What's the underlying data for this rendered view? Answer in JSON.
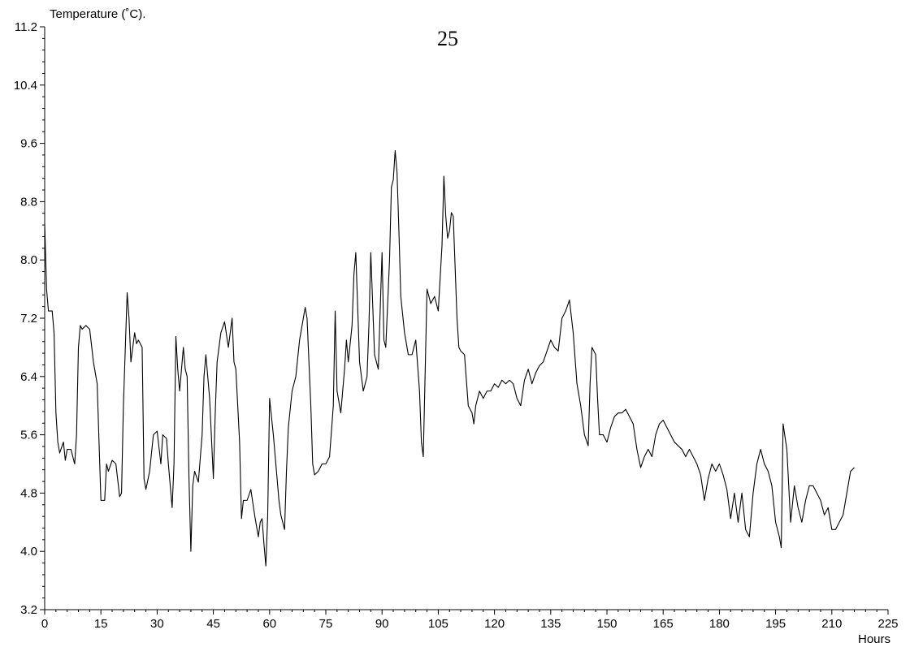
{
  "chart_data": {
    "type": "line",
    "title": "25",
    "ylabel": "Temperature (˚C).",
    "xlabel": "Hours",
    "xlim": [
      0,
      225
    ],
    "ylim": [
      3.2,
      11.2
    ],
    "xticks": [
      0,
      15,
      30,
      45,
      60,
      75,
      90,
      105,
      120,
      135,
      150,
      165,
      180,
      195,
      210,
      225
    ],
    "yticks": [
      "3.2",
      "4.0",
      "4.8",
      "5.6",
      "6.4",
      "7.2",
      "8.0",
      "8.8",
      "9.6",
      "10.4",
      "11.2"
    ],
    "grid": false,
    "series": [
      {
        "color": "#000000",
        "points": [
          [
            0,
            8.5
          ],
          [
            0.5,
            7.6
          ],
          [
            1,
            7.3
          ],
          [
            2,
            7.3
          ],
          [
            2.5,
            7.0
          ],
          [
            3,
            5.9
          ],
          [
            3.5,
            5.5
          ],
          [
            4,
            5.35
          ],
          [
            5,
            5.5
          ],
          [
            5.5,
            5.25
          ],
          [
            6,
            5.4
          ],
          [
            7,
            5.4
          ],
          [
            8,
            5.2
          ],
          [
            8.5,
            5.6
          ],
          [
            9,
            6.8
          ],
          [
            9.5,
            7.1
          ],
          [
            10,
            7.05
          ],
          [
            11,
            7.1
          ],
          [
            12,
            7.05
          ],
          [
            13,
            6.6
          ],
          [
            14,
            6.3
          ],
          [
            14.5,
            5.5
          ],
          [
            15,
            4.7
          ],
          [
            16,
            4.7
          ],
          [
            16.5,
            5.2
          ],
          [
            17,
            5.1
          ],
          [
            18,
            5.25
          ],
          [
            19,
            5.2
          ],
          [
            20,
            4.75
          ],
          [
            20.5,
            4.8
          ],
          [
            21,
            6.0
          ],
          [
            22,
            7.55
          ],
          [
            22.5,
            7.2
          ],
          [
            23,
            6.6
          ],
          [
            24,
            7.0
          ],
          [
            24.5,
            6.85
          ],
          [
            25,
            6.9
          ],
          [
            26,
            6.8
          ],
          [
            26.5,
            5.0
          ],
          [
            27,
            4.85
          ],
          [
            28,
            5.1
          ],
          [
            29,
            5.6
          ],
          [
            30,
            5.65
          ],
          [
            31,
            5.2
          ],
          [
            31.5,
            5.6
          ],
          [
            32.5,
            5.55
          ],
          [
            33,
            5.2
          ],
          [
            34,
            4.6
          ],
          [
            34.5,
            5.2
          ],
          [
            35,
            6.95
          ],
          [
            35.5,
            6.5
          ],
          [
            36,
            6.2
          ],
          [
            37,
            6.8
          ],
          [
            37.5,
            6.5
          ],
          [
            38,
            6.4
          ],
          [
            38.5,
            5.0
          ],
          [
            39,
            4.0
          ],
          [
            39.5,
            4.9
          ],
          [
            40,
            5.1
          ],
          [
            41,
            4.95
          ],
          [
            42,
            5.6
          ],
          [
            42.5,
            6.4
          ],
          [
            43,
            6.7
          ],
          [
            44,
            6.1
          ],
          [
            45,
            5.0
          ],
          [
            45.5,
            5.9
          ],
          [
            46,
            6.6
          ],
          [
            47,
            7.0
          ],
          [
            48,
            7.15
          ],
          [
            49,
            6.8
          ],
          [
            50,
            7.2
          ],
          [
            50.5,
            6.6
          ],
          [
            51,
            6.5
          ],
          [
            52,
            5.5
          ],
          [
            52.5,
            4.45
          ],
          [
            53,
            4.7
          ],
          [
            54,
            4.7
          ],
          [
            55,
            4.85
          ],
          [
            56,
            4.5
          ],
          [
            57,
            4.2
          ],
          [
            57.5,
            4.4
          ],
          [
            58,
            4.45
          ],
          [
            58.5,
            4.1
          ],
          [
            59,
            3.8
          ],
          [
            59.5,
            4.5
          ],
          [
            60,
            6.1
          ],
          [
            61,
            5.6
          ],
          [
            62,
            5.0
          ],
          [
            62.5,
            4.7
          ],
          [
            63,
            4.5
          ],
          [
            64,
            4.3
          ],
          [
            64.5,
            5.1
          ],
          [
            65,
            5.7
          ],
          [
            66,
            6.2
          ],
          [
            67,
            6.4
          ],
          [
            68,
            6.9
          ],
          [
            69,
            7.2
          ],
          [
            69.5,
            7.35
          ],
          [
            70,
            7.2
          ],
          [
            71,
            6.0
          ],
          [
            71.5,
            5.2
          ],
          [
            72,
            5.05
          ],
          [
            73,
            5.1
          ],
          [
            74,
            5.2
          ],
          [
            75,
            5.2
          ],
          [
            76,
            5.3
          ],
          [
            77,
            6.0
          ],
          [
            77.5,
            7.3
          ],
          [
            78,
            6.2
          ],
          [
            79,
            5.9
          ],
          [
            80,
            6.5
          ],
          [
            80.5,
            6.9
          ],
          [
            81,
            6.6
          ],
          [
            82,
            7.1
          ],
          [
            82.5,
            7.8
          ],
          [
            83,
            8.1
          ],
          [
            84,
            6.6
          ],
          [
            85,
            6.2
          ],
          [
            86,
            6.4
          ],
          [
            86.5,
            7.1
          ],
          [
            87,
            8.1
          ],
          [
            88,
            6.7
          ],
          [
            89,
            6.5
          ],
          [
            90,
            8.1
          ],
          [
            90.5,
            6.9
          ],
          [
            91,
            6.8
          ],
          [
            92,
            8.0
          ],
          [
            92.5,
            9.0
          ],
          [
            93,
            9.1
          ],
          [
            93.5,
            9.5
          ],
          [
            94,
            9.2
          ],
          [
            94.5,
            8.4
          ],
          [
            95,
            7.5
          ],
          [
            96,
            7.0
          ],
          [
            97,
            6.7
          ],
          [
            98,
            6.7
          ],
          [
            99,
            6.9
          ],
          [
            100,
            6.2
          ],
          [
            100.5,
            5.5
          ],
          [
            101,
            5.3
          ],
          [
            102,
            7.6
          ],
          [
            103,
            7.4
          ],
          [
            104,
            7.5
          ],
          [
            105,
            7.3
          ],
          [
            106,
            8.2
          ],
          [
            106.5,
            9.15
          ],
          [
            107,
            8.6
          ],
          [
            107.5,
            8.3
          ],
          [
            108,
            8.4
          ],
          [
            108.5,
            8.65
          ],
          [
            109,
            8.6
          ],
          [
            110,
            7.2
          ],
          [
            110.5,
            6.8
          ],
          [
            111,
            6.75
          ],
          [
            112,
            6.7
          ],
          [
            113,
            6.0
          ],
          [
            114,
            5.9
          ],
          [
            114.5,
            5.75
          ],
          [
            115,
            6.0
          ],
          [
            116,
            6.2
          ],
          [
            117,
            6.1
          ],
          [
            118,
            6.2
          ],
          [
            119,
            6.2
          ],
          [
            120,
            6.3
          ],
          [
            121,
            6.25
          ],
          [
            122,
            6.35
          ],
          [
            123,
            6.3
          ],
          [
            124,
            6.35
          ],
          [
            125,
            6.3
          ],
          [
            126,
            6.1
          ],
          [
            127,
            6.0
          ],
          [
            128,
            6.35
          ],
          [
            129,
            6.5
          ],
          [
            130,
            6.3
          ],
          [
            131,
            6.45
          ],
          [
            132,
            6.55
          ],
          [
            133,
            6.6
          ],
          [
            134,
            6.75
          ],
          [
            135,
            6.9
          ],
          [
            136,
            6.8
          ],
          [
            137,
            6.75
          ],
          [
            138,
            7.2
          ],
          [
            139,
            7.3
          ],
          [
            140,
            7.45
          ],
          [
            141,
            7.0
          ],
          [
            142,
            6.3
          ],
          [
            143,
            6.0
          ],
          [
            144,
            5.6
          ],
          [
            145,
            5.45
          ],
          [
            145.5,
            6.3
          ],
          [
            146,
            6.8
          ],
          [
            147,
            6.7
          ],
          [
            147.5,
            6.1
          ],
          [
            148,
            5.6
          ],
          [
            149,
            5.6
          ],
          [
            150,
            5.5
          ],
          [
            151,
            5.7
          ],
          [
            152,
            5.85
          ],
          [
            153,
            5.9
          ],
          [
            154,
            5.9
          ],
          [
            155,
            5.95
          ],
          [
            156,
            5.85
          ],
          [
            157,
            5.75
          ],
          [
            158,
            5.4
          ],
          [
            159,
            5.15
          ],
          [
            160,
            5.3
          ],
          [
            161,
            5.4
          ],
          [
            162,
            5.3
          ],
          [
            163,
            5.6
          ],
          [
            164,
            5.75
          ],
          [
            165,
            5.8
          ],
          [
            166,
            5.7
          ],
          [
            167,
            5.6
          ],
          [
            168,
            5.5
          ],
          [
            169,
            5.45
          ],
          [
            170,
            5.4
          ],
          [
            171,
            5.3
          ],
          [
            172,
            5.4
          ],
          [
            173,
            5.3
          ],
          [
            174,
            5.2
          ],
          [
            175,
            5.05
          ],
          [
            176,
            4.7
          ],
          [
            177,
            5.0
          ],
          [
            178,
            5.2
          ],
          [
            179,
            5.1
          ],
          [
            180,
            5.2
          ],
          [
            181,
            5.05
          ],
          [
            182,
            4.85
          ],
          [
            183,
            4.45
          ],
          [
            184,
            4.8
          ],
          [
            185,
            4.4
          ],
          [
            186,
            4.8
          ],
          [
            187,
            4.3
          ],
          [
            188,
            4.2
          ],
          [
            189,
            4.8
          ],
          [
            190,
            5.2
          ],
          [
            191,
            5.4
          ],
          [
            192,
            5.2
          ],
          [
            193,
            5.1
          ],
          [
            194,
            4.9
          ],
          [
            195,
            4.4
          ],
          [
            196,
            4.2
          ],
          [
            196.5,
            4.05
          ],
          [
            197,
            5.75
          ],
          [
            198,
            5.4
          ],
          [
            199,
            4.4
          ],
          [
            200,
            4.9
          ],
          [
            201,
            4.6
          ],
          [
            202,
            4.4
          ],
          [
            203,
            4.7
          ],
          [
            204,
            4.9
          ],
          [
            205,
            4.9
          ],
          [
            206,
            4.8
          ],
          [
            207,
            4.7
          ],
          [
            208,
            4.5
          ],
          [
            209,
            4.6
          ],
          [
            210,
            4.3
          ],
          [
            211,
            4.3
          ],
          [
            212,
            4.4
          ],
          [
            213,
            4.5
          ],
          [
            214,
            4.8
          ],
          [
            215,
            5.1
          ],
          [
            216,
            5.15
          ]
        ]
      }
    ]
  }
}
